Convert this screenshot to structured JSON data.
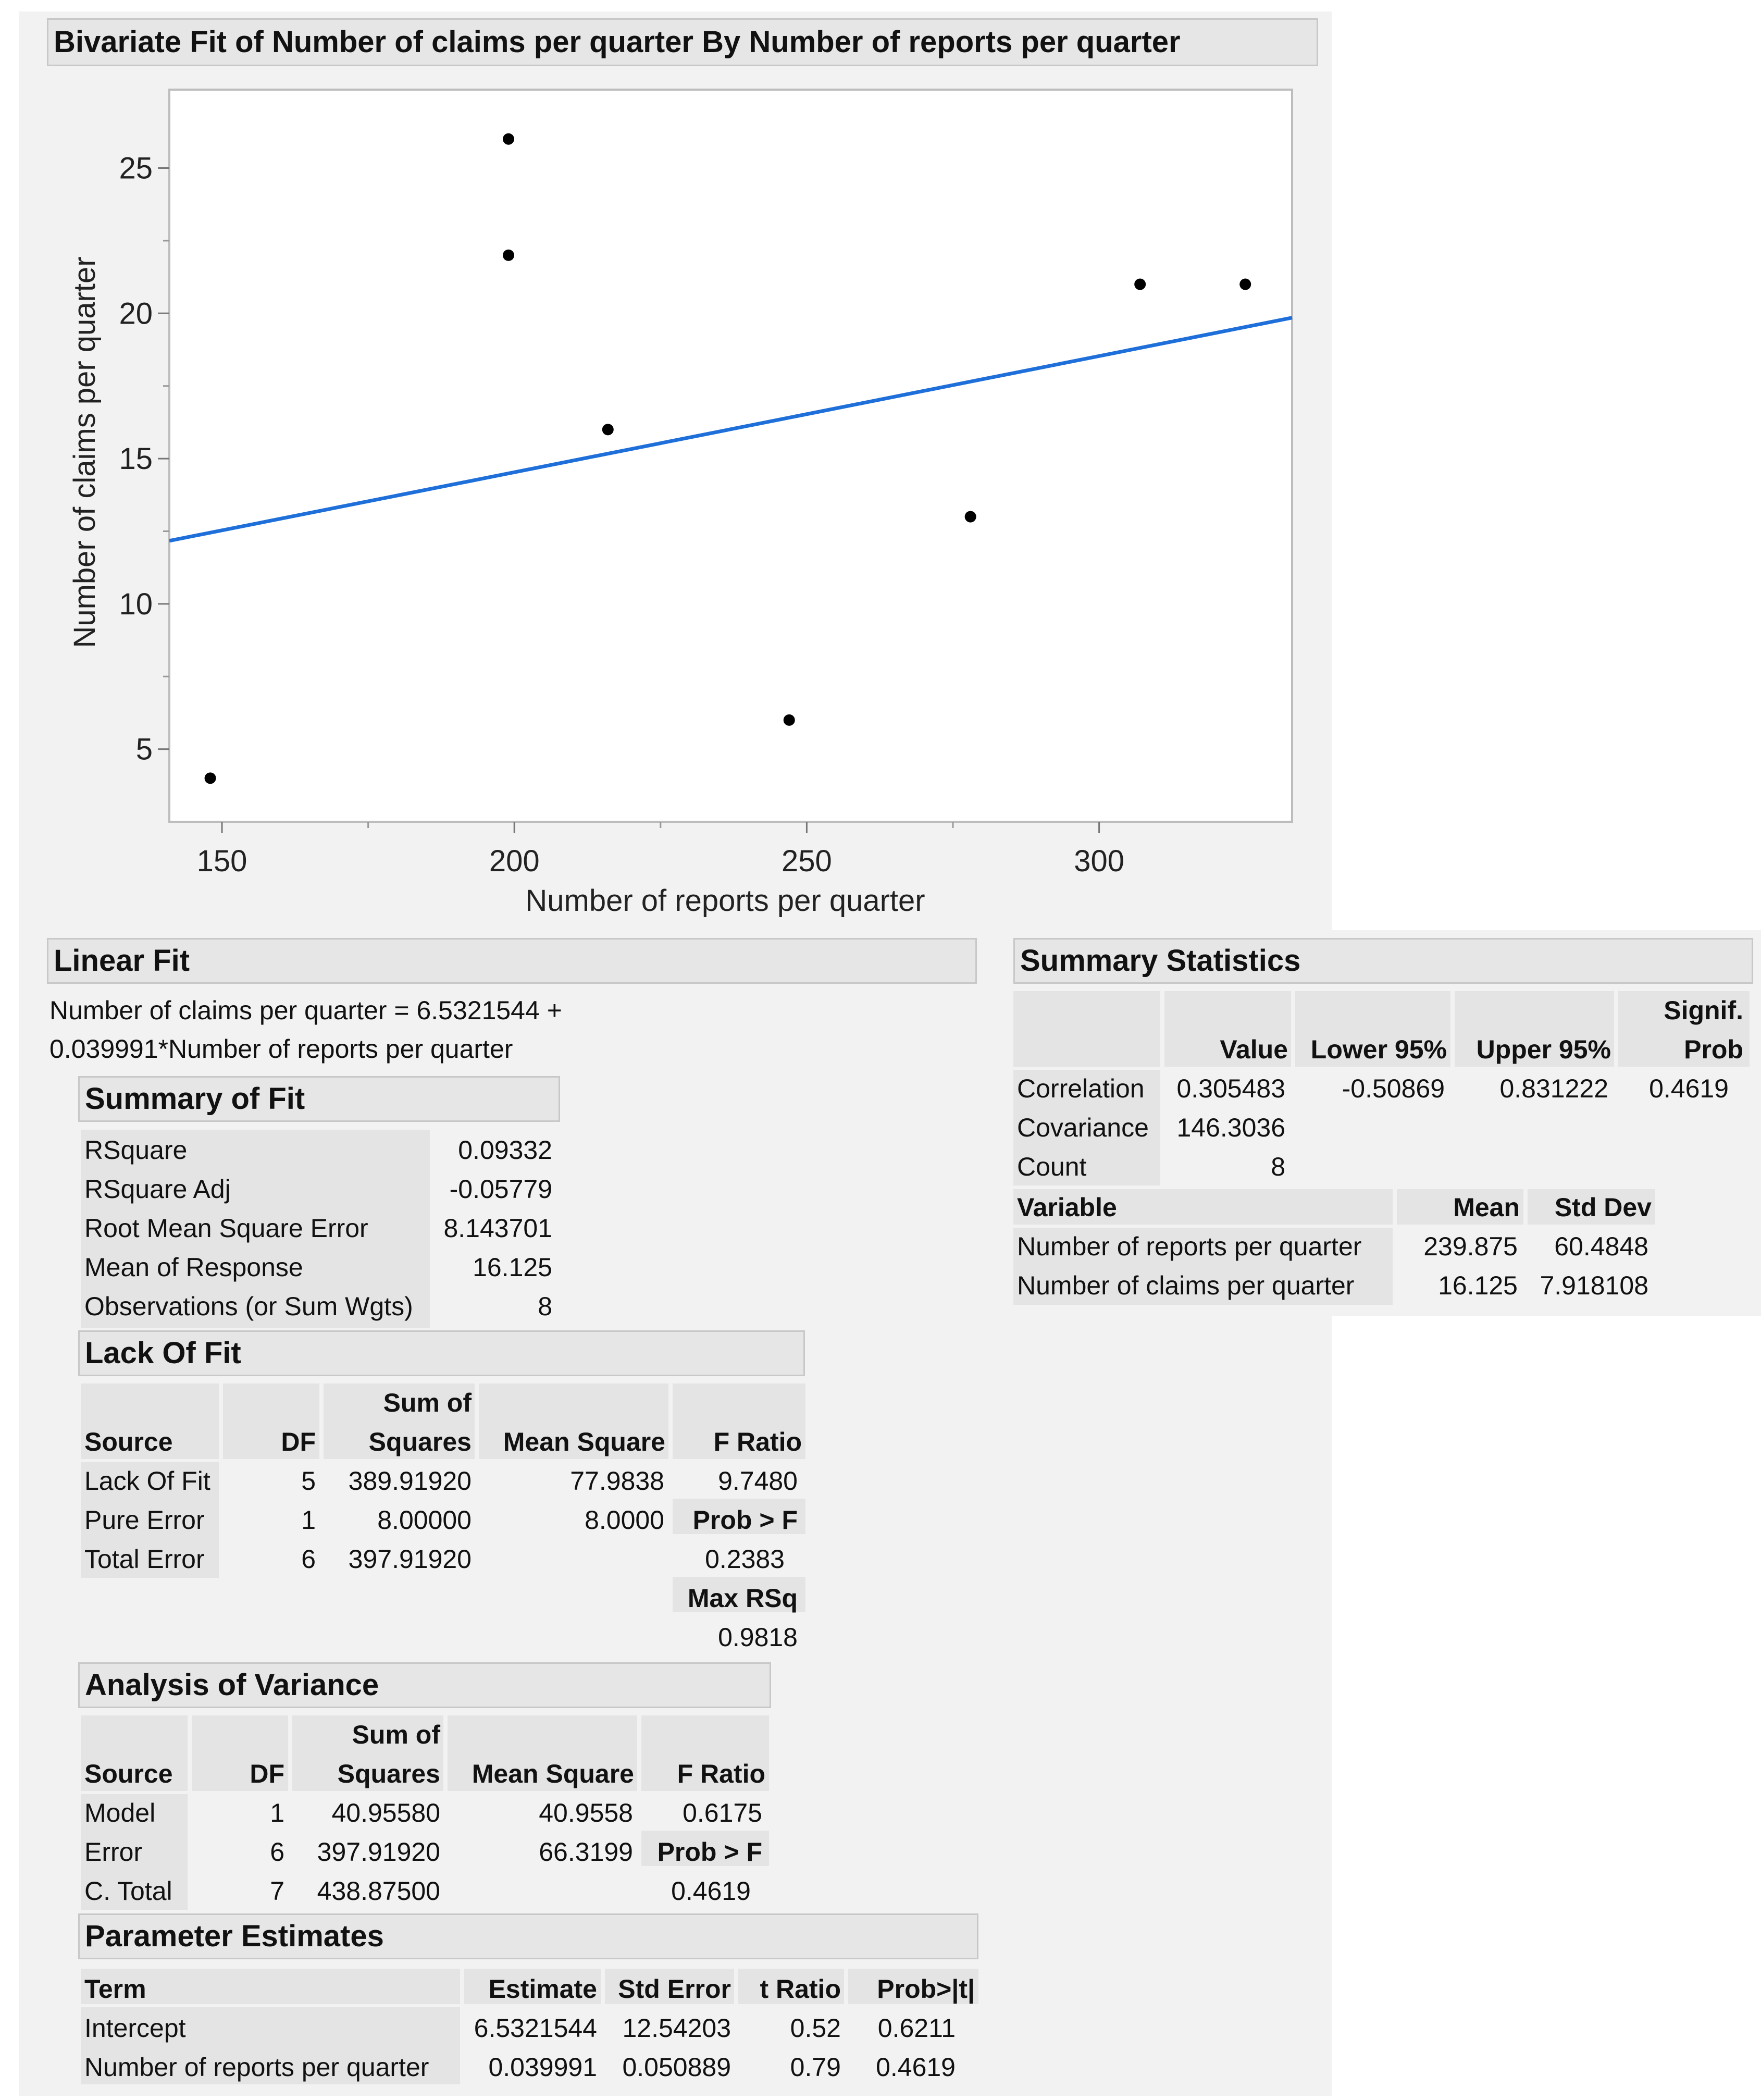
{
  "title": "Bivariate Fit of Number of claims per quarter By Number of reports per quarter",
  "chart_data": {
    "type": "scatter",
    "xlabel": "Number of reports per quarter",
    "ylabel": "Number of claims per quarter",
    "xlim": [
      141,
      333
    ],
    "ylim": [
      2.5,
      27.7
    ],
    "x_ticks": [
      150,
      200,
      250,
      300
    ],
    "y_ticks": [
      5,
      10,
      15,
      20,
      25
    ],
    "points": [
      {
        "x": 148,
        "y": 4
      },
      {
        "x": 199,
        "y": 26
      },
      {
        "x": 199,
        "y": 22
      },
      {
        "x": 216,
        "y": 16
      },
      {
        "x": 247,
        "y": 6
      },
      {
        "x": 278,
        "y": 13
      },
      {
        "x": 307,
        "y": 21
      },
      {
        "x": 325,
        "y": 21
      }
    ],
    "fit_line": {
      "intercept": 6.5321544,
      "slope": 0.039991,
      "color": "#1e6fd9"
    },
    "point_color": "#000000",
    "grid": false
  },
  "linear_fit": {
    "header": "Linear Fit",
    "equation_line1": "Number of claims per quarter = 6.5321544 +",
    "equation_line2": "0.039991*Number of reports per quarter"
  },
  "summary_of_fit": {
    "header": "Summary of Fit",
    "rows": [
      {
        "label": "RSquare",
        "value": "0.09332"
      },
      {
        "label": "RSquare Adj",
        "value": "-0.05779"
      },
      {
        "label": "Root Mean Square Error",
        "value": "8.143701"
      },
      {
        "label": "Mean of Response",
        "value": "16.125"
      },
      {
        "label": "Observations (or Sum Wgts)",
        "value": "8"
      }
    ]
  },
  "lack_of_fit": {
    "header": "Lack Of Fit",
    "col_source": "Source",
    "col_df": "DF",
    "col_ss_1": "Sum of",
    "col_ss_2": "Squares",
    "col_ms": "Mean Square",
    "col_f": "F Ratio",
    "rows": [
      {
        "source": "Lack Of Fit",
        "df": "5",
        "ss": "389.91920",
        "ms": "77.9838",
        "f": "9.7480"
      },
      {
        "source": "Pure Error",
        "df": "1",
        "ss": "8.00000",
        "ms": "8.0000",
        "f": "Prob > F"
      },
      {
        "source": "Total Error",
        "df": "6",
        "ss": "397.91920",
        "ms": "",
        "f": "0.2383"
      }
    ],
    "max_rsq_label": "Max RSq",
    "max_rsq_value": "0.9818"
  },
  "anova": {
    "header": "Analysis of Variance",
    "col_source": "Source",
    "col_df": "DF",
    "col_ss_1": "Sum of",
    "col_ss_2": "Squares",
    "col_ms": "Mean Square",
    "col_f": "F Ratio",
    "rows": [
      {
        "source": "Model",
        "df": "1",
        "ss": "40.95580",
        "ms": "40.9558",
        "f": "0.6175"
      },
      {
        "source": "Error",
        "df": "6",
        "ss": "397.91920",
        "ms": "66.3199",
        "f": "Prob > F"
      },
      {
        "source": "C. Total",
        "df": "7",
        "ss": "438.87500",
        "ms": "",
        "f": "0.4619"
      }
    ]
  },
  "parameter_estimates": {
    "header": "Parameter Estimates",
    "col_term": "Term",
    "col_estimate": "Estimate",
    "col_se": "Std Error",
    "col_t": "t Ratio",
    "col_p": "Prob>|t|",
    "rows": [
      {
        "term": "Intercept",
        "estimate": "6.5321544",
        "se": "12.54203",
        "t": "0.52",
        "p": "0.6211"
      },
      {
        "term": "Number of reports per quarter",
        "estimate": "0.039991",
        "se": "0.050889",
        "t": "0.79",
        "p": "0.4619"
      }
    ]
  },
  "summary_statistics": {
    "header": "Summary Statistics",
    "col_value": "Value",
    "col_lower": "Lower 95%",
    "col_upper": "Upper 95%",
    "col_signif_1": "Signif.",
    "col_signif_2": "Prob",
    "rows": [
      {
        "label": "Correlation",
        "value": "0.305483",
        "lower": "-0.50869",
        "upper": "0.831222",
        "signif": "0.4619"
      },
      {
        "label": "Covariance",
        "value": "146.3036",
        "lower": "",
        "upper": "",
        "signif": ""
      },
      {
        "label": "Count",
        "value": "8",
        "lower": "",
        "upper": "",
        "signif": ""
      }
    ],
    "col_variable": "Variable",
    "col_mean": "Mean",
    "col_sd": "Std Dev",
    "var_rows": [
      {
        "variable": "Number of reports per quarter",
        "mean": "239.875",
        "sd": "60.4848"
      },
      {
        "variable": "Number of claims per quarter",
        "mean": "16.125",
        "sd": "7.918108"
      }
    ]
  }
}
